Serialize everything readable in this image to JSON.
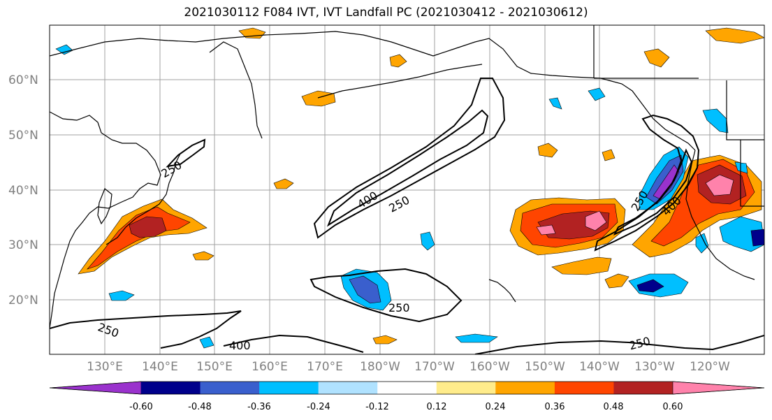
{
  "title": "2021030112 F084 IVT, IVT Landfall PC (2021030412 - 2021030612)",
  "lat_labels": [
    "60°N",
    "50°N",
    "40°N",
    "30°N",
    "20°N"
  ],
  "lon_labels": [
    "130°E",
    "140°E",
    "150°E",
    "160°E",
    "170°E",
    "180°W",
    "170°W",
    "160°W",
    "150°W",
    "140°W",
    "130°W",
    "120°W"
  ],
  "colorbar": {
    "colors": [
      "#9a32cd",
      "#00008b",
      "#3a5fcd",
      "#00bfff",
      "#b0e2ff",
      "#ffffff",
      "#ffec8b",
      "#ffa500",
      "#ff4500",
      "#b22222",
      "#ff82ab"
    ],
    "tick_labels": [
      "-0.60",
      "-0.48",
      "-0.36",
      "-0.24",
      "-0.12",
      "0.12",
      "0.24",
      "0.36",
      "0.48",
      "0.60"
    ]
  },
  "contour_labels": [
    "250",
    "400",
    "250",
    "250",
    "400",
    "250",
    "250",
    "250",
    "400",
    "250"
  ],
  "colors": {
    "coast": "#000000",
    "grid": "#a0a0a0",
    "contour": "#000000"
  }
}
